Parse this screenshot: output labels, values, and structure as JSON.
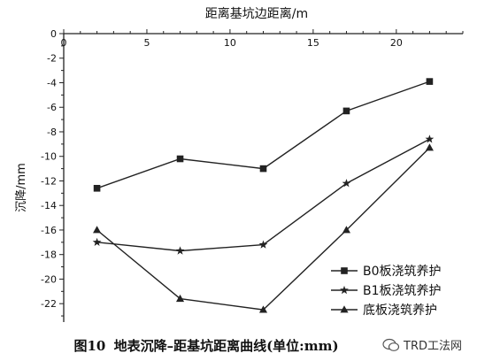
{
  "chart_data": {
    "type": "line",
    "title": "",
    "xlabel": "距离基坑边距离/m",
    "ylabel": "沉降/mm",
    "xlim": [
      0,
      24
    ],
    "ylim": [
      -23.5,
      0
    ],
    "x_ticks": [
      "0",
      "5",
      "10",
      "15",
      "20"
    ],
    "y_ticks": [
      "0",
      "-2",
      "-4",
      "-6",
      "-8",
      "-10",
      "-12",
      "-14",
      "-16",
      "-18",
      "-20",
      "-22"
    ],
    "x_axis_position": "top",
    "grid": false,
    "legend_position": "bottom-right",
    "series": [
      {
        "name": "B0板浇筑养护",
        "marker": "square",
        "x": [
          2,
          7,
          12,
          17,
          22
        ],
        "y": [
          -12.6,
          -10.2,
          -11.0,
          -6.3,
          -3.9
        ]
      },
      {
        "name": "B1板浇筑养护",
        "marker": "star",
        "x": [
          2,
          7,
          12,
          17,
          22
        ],
        "y": [
          -17.0,
          -17.7,
          -17.2,
          -12.2,
          -8.6
        ]
      },
      {
        "name": "底板浇筑养护",
        "marker": "triangle",
        "x": [
          2,
          7,
          12,
          17,
          22
        ],
        "y": [
          -16.0,
          -21.6,
          -22.5,
          -16.0,
          -9.3
        ]
      }
    ]
  },
  "caption": {
    "number": "图10",
    "text": "地表沉降–距基坑距离曲线(单位:mm)"
  },
  "watermark": {
    "text": "TRD工法网",
    "icon": "wechat-logo"
  },
  "colors": {
    "line": "#222222",
    "axis": "#222222",
    "background": "#ffffff"
  }
}
